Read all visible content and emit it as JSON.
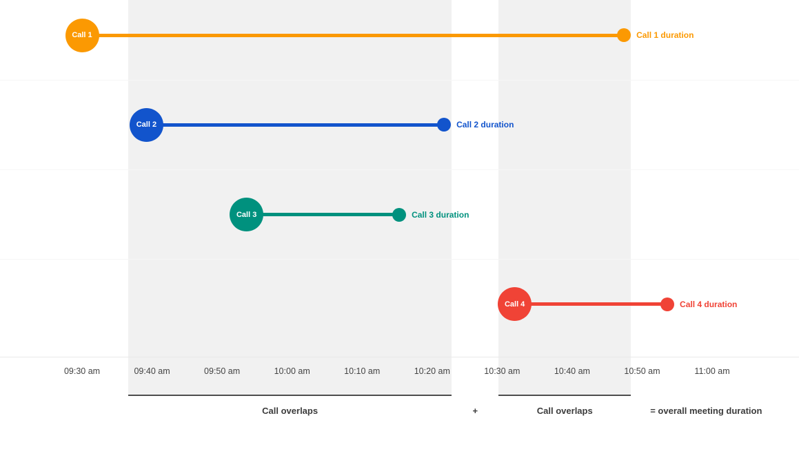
{
  "chart_data": {
    "type": "timeline",
    "title": "",
    "description": "Gantt-style timeline of four overlapping calls with shaded call-overlap windows summing to overall meeting duration",
    "x_axis": {
      "tick_labels": [
        "09:30 am",
        "09:40 am",
        "09:50 am",
        "10:00 am",
        "10:10 am",
        "10:20 am",
        "10:30 am",
        "10:40 am",
        "10:50 am",
        "11:00 am"
      ],
      "tick_interval_minutes": 10,
      "range_minutes": [
        0,
        90
      ],
      "grid": true
    },
    "series": [
      {
        "name": "Call 1",
        "duration_label": "Call 1 duration",
        "start_time": "09:30 am",
        "end_time": "10:47 am",
        "start_min": 0,
        "end_min": 77.4,
        "color": "#FB9902"
      },
      {
        "name": "Call 2",
        "duration_label": "Call 2 duration",
        "start_time": "09:39 am",
        "end_time": "10:22 am",
        "start_min": 9.2,
        "end_min": 51.7,
        "color": "#1254CC"
      },
      {
        "name": "Call 3",
        "duration_label": "Call 3 duration",
        "start_time": "09:54 am",
        "end_time": "10:15 am",
        "start_min": 23.5,
        "end_min": 45.3,
        "color": "#00917E"
      },
      {
        "name": "Call 4",
        "duration_label": "Call 4 duration",
        "start_time": "10:32 am",
        "end_time": "10:54 am",
        "start_min": 61.8,
        "end_min": 83.6,
        "color": "#F04336"
      }
    ],
    "overlap_bands": [
      {
        "label": "Call overlaps",
        "start_min": 6.6,
        "end_min": 52.8
      },
      {
        "label": "Call overlaps",
        "start_min": 59.5,
        "end_min": 78.4
      }
    ],
    "footer": {
      "plus": "+",
      "equals": "= overall meeting duration"
    },
    "colors": {
      "band": "#f1f1f1",
      "band_underline": "#4d4d4d",
      "grid_line": "#f6f6f6",
      "axis_line": "#e9e9e9",
      "tick_text": "#434343",
      "footer_text": "#3c3c3c",
      "background": "#ffffff"
    }
  }
}
